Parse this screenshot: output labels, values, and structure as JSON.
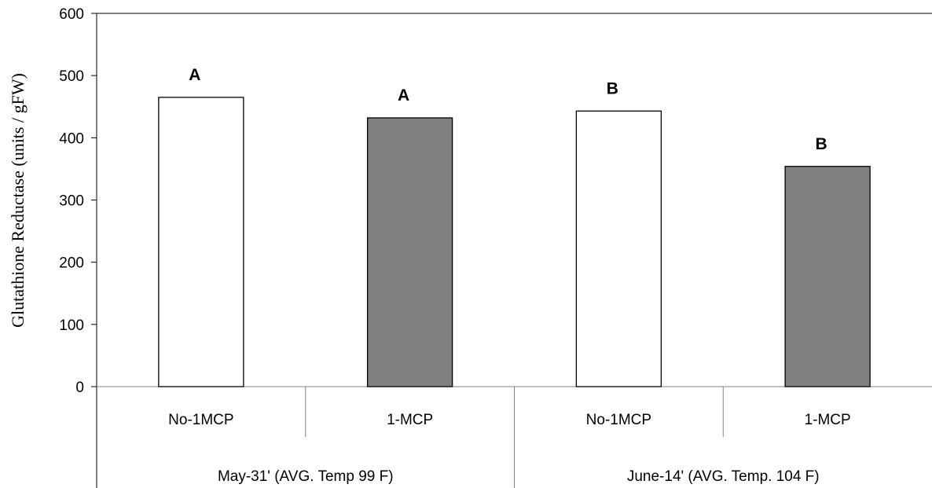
{
  "chart_data": {
    "type": "bar",
    "ylabel": "Glutathione Reductase (units / gFW)",
    "ylim": [
      0,
      600
    ],
    "yticks": [
      0,
      100,
      200,
      300,
      400,
      500,
      600
    ],
    "grid": false,
    "groups": [
      {
        "label": "May-31'    (AVG. Temp 99 F)",
        "categories": [
          "No-1MCP",
          "1-MCP"
        ]
      },
      {
        "label": "June-14' (AVG. Temp. 104 F)",
        "categories": [
          "No-1MCP",
          "1-MCP"
        ]
      }
    ],
    "bars": [
      {
        "group": 0,
        "category": "No-1MCP",
        "value": 465,
        "significance": "A",
        "color": "#ffffff"
      },
      {
        "group": 0,
        "category": "1-MCP",
        "value": 432,
        "significance": "A",
        "color": "#808080"
      },
      {
        "group": 1,
        "category": "No-1MCP",
        "value": 443,
        "significance": "B",
        "color": "#ffffff"
      },
      {
        "group": 1,
        "category": "1-MCP",
        "value": 354,
        "significance": "B",
        "color": "#808080"
      }
    ]
  }
}
